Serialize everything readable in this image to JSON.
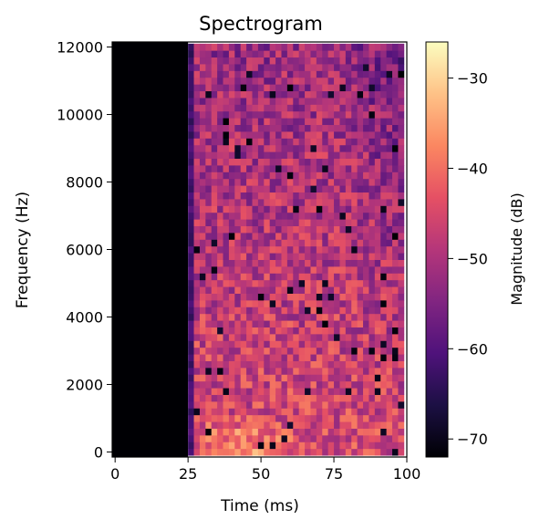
{
  "chart_data": {
    "type": "heatmap",
    "title": "Spectrogram",
    "xlabel": "Time (ms)",
    "ylabel": "Frequency (Hz)",
    "xlim": [
      -1,
      100
    ],
    "ylim": [
      -150,
      12150
    ],
    "x_ticks": [
      0,
      25,
      50,
      75,
      100
    ],
    "y_ticks": [
      0,
      2000,
      4000,
      6000,
      8000,
      10000,
      12000
    ],
    "time_bins": 50,
    "freq_bins": 61,
    "time_step_ms": 2,
    "freq_step_hz": 200,
    "silence_until_ms": 26,
    "colorbar": {
      "label": "Magnitude (dB)",
      "vmin": -72,
      "vmax": -26,
      "ticks": [
        -30,
        -40,
        -50,
        -60,
        -70
      ],
      "tick_labels": [
        "−30",
        "−40",
        "−50",
        "−60",
        "−70"
      ],
      "colormap": "magma"
    },
    "magnitude_summary_db": {
      "silent_region": -72,
      "transition_column": -62,
      "low_freq_peak_area": -34,
      "mid_band_typical": -45,
      "high_band_typical": -52,
      "dropouts": -72
    }
  }
}
